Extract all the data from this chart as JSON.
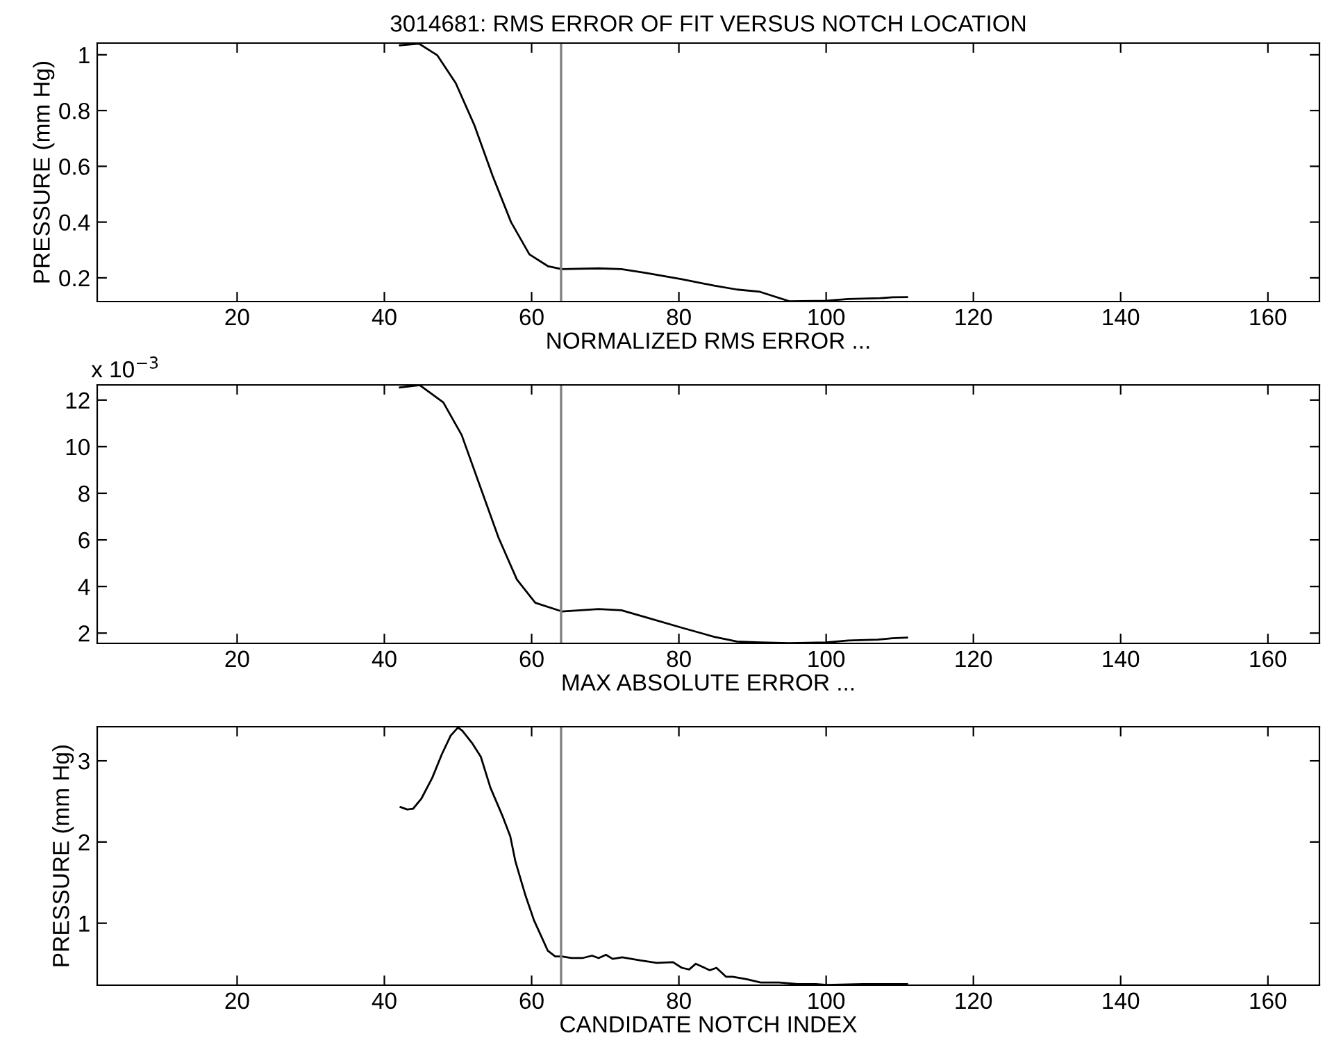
{
  "chart_data": [
    {
      "type": "line",
      "title": "3014681: RMS ERROR OF FIT VERSUS NOTCH LOCATION",
      "xlabel": "NORMALIZED RMS ERROR ...",
      "ylabel": "PRESSURE (mm Hg)",
      "xlim": [
        1,
        167
      ],
      "xticks": [
        20,
        40,
        60,
        80,
        100,
        120,
        140,
        160
      ],
      "ylim": [
        0.115,
        1.042
      ],
      "yticks": [
        0.2,
        0.4,
        0.6,
        0.8,
        1
      ],
      "series": [
        {
          "color": "#000000",
          "x": [
            42.1,
            44.7,
            47.2,
            49.7,
            52.2,
            54.7,
            57.2,
            59.7,
            62.2,
            64.1,
            69.1,
            72.2,
            75.4,
            80.4,
            84.8,
            87.9,
            91,
            95,
            100,
            103,
            107.3,
            109,
            111
          ],
          "values": [
            1.034,
            1.04,
            0.998,
            0.898,
            0.749,
            0.566,
            0.4,
            0.284,
            0.242,
            0.231,
            0.234,
            0.231,
            0.218,
            0.195,
            0.172,
            0.158,
            0.15,
            0.116,
            0.118,
            0.124,
            0.127,
            0.13,
            0.131
          ]
        }
      ],
      "ref_lines": [
        {
          "axis": "x",
          "value": 64,
          "color": "#808080"
        }
      ]
    },
    {
      "type": "line",
      "xlabel": "MAX ABSOLUTE ERROR ...",
      "annotations": [
        "x 10$^{−3}$"
      ],
      "xlim": [
        1,
        167
      ],
      "xticks": [
        20,
        40,
        60,
        80,
        100,
        120,
        140,
        160
      ],
      "ylim": [
        1.56,
        12.65
      ],
      "yticks": [
        2,
        4,
        6,
        8,
        10,
        12
      ],
      "series": [
        {
          "color": "#000000",
          "x": [
            42.1,
            44.8,
            48.0,
            50.5,
            53.0,
            55.5,
            58.0,
            60.5,
            64.1,
            69.1,
            72.2,
            75.4,
            80.4,
            84.8,
            87.9,
            91,
            95,
            100,
            103,
            107,
            109,
            111
          ],
          "values": [
            12.54,
            12.64,
            11.9,
            10.5,
            8.3,
            6.1,
            4.3,
            3.3,
            2.93,
            3.03,
            2.98,
            2.69,
            2.23,
            1.84,
            1.64,
            1.6,
            1.57,
            1.6,
            1.68,
            1.72,
            1.78,
            1.81
          ]
        }
      ],
      "ref_lines": [
        {
          "axis": "x",
          "value": 64,
          "color": "#808080"
        }
      ]
    },
    {
      "type": "line",
      "xlabel": "CANDIDATE NOTCH INDEX",
      "ylabel": "PRESSURE (mm Hg)",
      "xlim": [
        1,
        167
      ],
      "xticks": [
        20,
        40,
        60,
        80,
        100,
        120,
        140,
        160
      ],
      "ylim": [
        0.236,
        3.42
      ],
      "yticks": [
        1,
        2,
        3
      ],
      "series": [
        {
          "color": "#000000",
          "x": [
            42.2,
            43.1,
            43.9,
            45.0,
            46.5,
            47.8,
            49.0,
            50.0,
            50.6,
            51.9,
            53.1,
            54.4,
            56.0,
            57.1,
            57.8,
            59.1,
            60.3,
            61.3,
            62.2,
            63.2,
            64.1,
            65.4,
            66.9,
            68.2,
            69.1,
            70.1,
            71.0,
            72.3,
            74.8,
            77.0,
            79.2,
            80.4,
            81.4,
            82.3,
            84.2,
            85.1,
            86.4,
            87.3,
            89.2,
            91.1,
            93.6,
            96.1,
            98.6,
            100.1,
            105,
            111
          ],
          "values": [
            2.43,
            2.4,
            2.41,
            2.53,
            2.79,
            3.08,
            3.31,
            3.41,
            3.37,
            3.22,
            3.05,
            2.67,
            2.33,
            2.07,
            1.76,
            1.36,
            1.04,
            0.84,
            0.66,
            0.59,
            0.59,
            0.57,
            0.57,
            0.6,
            0.57,
            0.61,
            0.56,
            0.58,
            0.54,
            0.51,
            0.52,
            0.45,
            0.43,
            0.5,
            0.42,
            0.45,
            0.34,
            0.34,
            0.31,
            0.27,
            0.27,
            0.25,
            0.25,
            0.24,
            0.25,
            0.25
          ]
        }
      ],
      "ref_lines": [
        {
          "axis": "x",
          "value": 64,
          "color": "#808080"
        }
      ]
    }
  ]
}
